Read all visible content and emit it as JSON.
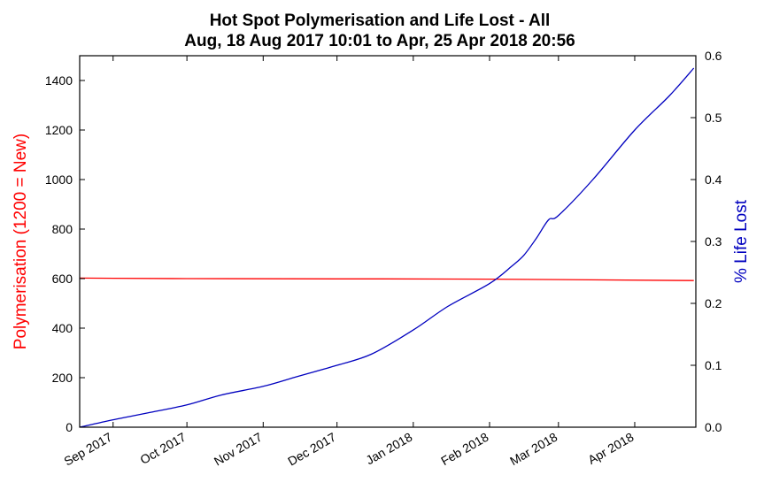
{
  "chart_data": {
    "type": "line",
    "title": "Hot Spot Polymerisation and Life Lost - All",
    "subtitle": "Aug, 18 Aug 2017 10:01 to Apr, 25 Apr 2018 20:56",
    "xlabel": "",
    "x_range": [
      "2017-08-18",
      "2018-04-25"
    ],
    "x_ticks": [
      {
        "date": "2017-09-01",
        "label": "Sep 2017"
      },
      {
        "date": "2017-10-01",
        "label": "Oct 2017"
      },
      {
        "date": "2017-11-01",
        "label": "Nov 2017"
      },
      {
        "date": "2017-12-01",
        "label": "Dec 2017"
      },
      {
        "date": "2018-01-01",
        "label": "Jan 2018"
      },
      {
        "date": "2018-02-01",
        "label": "Feb 2018"
      },
      {
        "date": "2018-03-01",
        "label": "Mar 2018"
      },
      {
        "date": "2018-04-01",
        "label": "Apr 2018"
      }
    ],
    "y_left": {
      "label": "Polymerisation (1200 = New)",
      "color": "#ff0000",
      "lim": [
        0,
        1500
      ],
      "ticks": [
        0,
        200,
        400,
        600,
        800,
        1000,
        1200,
        1400
      ]
    },
    "y_right": {
      "label": "% Life Lost",
      "color": "#0000bf",
      "lim": [
        0,
        0.6
      ],
      "ticks": [
        "0.0",
        "0.1",
        "0.2",
        "0.3",
        "0.4",
        "0.5",
        "0.6"
      ]
    },
    "series": [
      {
        "axis": "left",
        "color": "#ff0000",
        "x": [
          "2017-08-18",
          "2017-10-01",
          "2017-12-01",
          "2018-02-01",
          "2018-04-25"
        ],
        "y": [
          602,
          600,
          599,
          598,
          592
        ]
      },
      {
        "axis": "right",
        "color": "#0000bf",
        "x": [
          "2017-08-18",
          "2017-09-01",
          "2017-09-15",
          "2017-10-01",
          "2017-10-15",
          "2017-11-01",
          "2017-11-15",
          "2017-12-01",
          "2017-12-15",
          "2018-01-01",
          "2018-01-15",
          "2018-02-01",
          "2018-02-10",
          "2018-02-15",
          "2018-02-20",
          "2018-02-25",
          "2018-03-01",
          "2018-03-15",
          "2018-04-01",
          "2018-04-15",
          "2018-04-25"
        ],
        "y": [
          0.0,
          0.012,
          0.023,
          0.036,
          0.052,
          0.066,
          0.082,
          0.1,
          0.118,
          0.157,
          0.195,
          0.232,
          0.26,
          0.278,
          0.305,
          0.335,
          0.342,
          0.4,
          0.48,
          0.535,
          0.58
        ]
      }
    ]
  }
}
